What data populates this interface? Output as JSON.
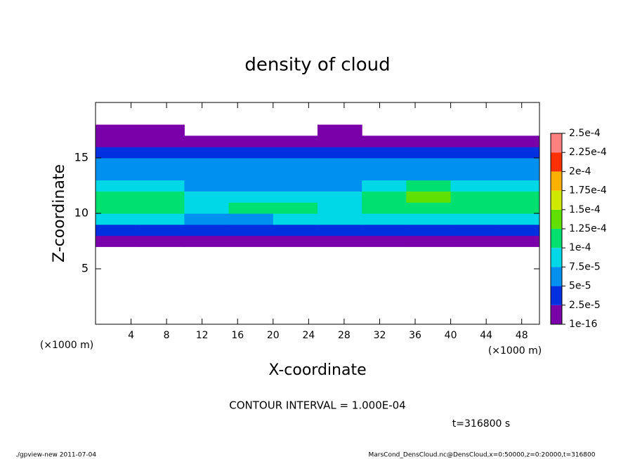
{
  "chart_data": {
    "type": "heatmap",
    "title": "density of cloud",
    "x_label": "X-coordinate",
    "y_label": "Z-coordinate",
    "x_unit_left": "(×1000 m)",
    "x_unit_right": "(×1000 m)",
    "xlim": [
      0,
      50
    ],
    "xticks": [
      4,
      8,
      12,
      16,
      20,
      24,
      28,
      32,
      36,
      40,
      44,
      48
    ],
    "ylim": [
      0,
      20
    ],
    "yticks": [
      5,
      10,
      15
    ],
    "x_edges": [
      0,
      5,
      10,
      15,
      20,
      25,
      30,
      35,
      40,
      45,
      50
    ],
    "y_edges": [
      7,
      8,
      9,
      10,
      11,
      12,
      13,
      14,
      15,
      16,
      17,
      18
    ],
    "values": [
      [
        1e-16,
        1e-16,
        1e-16,
        1e-16,
        1e-16,
        1e-16,
        1e-16,
        1e-16,
        1e-16,
        1e-16
      ],
      [
        4e-05,
        4e-05,
        3.5e-05,
        4e-05,
        4e-05,
        4e-05,
        4.5e-05,
        4.5e-05,
        4e-05,
        4e-05
      ],
      [
        8e-05,
        8e-05,
        7e-05,
        7e-05,
        8e-05,
        8e-05,
        9e-05,
        9e-05,
        8e-05,
        8.5e-05
      ],
      [
        0.00011,
        0.000105,
        9e-05,
        0.000105,
        0.000105,
        9e-05,
        0.000115,
        0.00012,
        0.00011,
        0.00011
      ],
      [
        0.000115,
        0.00011,
        8e-05,
        7.5e-05,
        7.5e-05,
        8e-05,
        0.00012,
        0.00013,
        0.000115,
        0.00011
      ],
      [
        9e-05,
        8e-05,
        7e-05,
        6.5e-05,
        6.5e-05,
        7e-05,
        9e-05,
        0.000105,
        9e-05,
        9e-05
      ],
      [
        6.5e-05,
        6e-05,
        6e-05,
        6e-05,
        6.5e-05,
        6e-05,
        6.5e-05,
        7e-05,
        6.5e-05,
        6.5e-05
      ],
      [
        5e-05,
        5e-05,
        5e-05,
        5.5e-05,
        5.5e-05,
        5e-05,
        5e-05,
        5e-05,
        5e-05,
        5e-05
      ],
      [
        4e-05,
        3.5e-05,
        4e-05,
        4.5e-05,
        4.5e-05,
        4e-05,
        3.5e-05,
        4e-05,
        4e-05,
        3.5e-05
      ],
      [
        2e-05,
        2e-05,
        1.5e-05,
        1.5e-05,
        1.5e-05,
        1.5e-05,
        2e-05,
        2e-05,
        2e-05,
        2e-05
      ],
      [
        1e-16,
        1e-16,
        null,
        null,
        null,
        1e-16,
        null,
        null,
        null,
        null
      ]
    ],
    "colorbar_ticks": [
      {
        "value": 1e-16,
        "label": "1e-16"
      },
      {
        "value": 2.5e-05,
        "label": "2.5e-5"
      },
      {
        "value": 5e-05,
        "label": "5e-5"
      },
      {
        "value": 7.5e-05,
        "label": "7.5e-5"
      },
      {
        "value": 0.0001,
        "label": "1e-4"
      },
      {
        "value": 0.000125,
        "label": "1.25e-4"
      },
      {
        "value": 0.00015,
        "label": "1.5e-4"
      },
      {
        "value": 0.000175,
        "label": "1.75e-4"
      },
      {
        "value": 0.0002,
        "label": "2e-4"
      },
      {
        "value": 0.000225,
        "label": "2.25e-4"
      },
      {
        "value": 0.00025,
        "label": "2.5e-4"
      }
    ],
    "colorbar_colors": [
      "#7a00aa",
      "#0030e0",
      "#0090f0",
      "#00d8e8",
      "#00e070",
      "#60e000",
      "#d0e800",
      "#ffb000",
      "#ff3000",
      "#ff8080"
    ],
    "contour_text": "CONTOUR INTERVAL = 1.000E-04",
    "time_text": "t=316800 s",
    "footer_left": "./gpview-new  2011-07-04",
    "footer_right": "MarsCond_DensCloud.nc@DensCloud,x=0:50000,z=0:20000,t=316800"
  }
}
